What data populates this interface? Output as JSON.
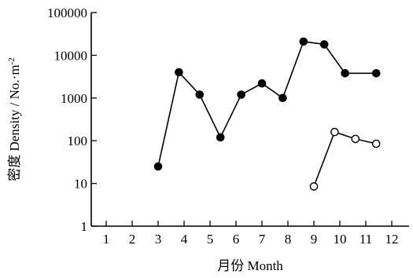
{
  "chart_data": {
    "type": "line",
    "title": "",
    "xlabel": "月份 Month",
    "ylabel": "密度 Density / No.·m",
    "ylabel_superscript": "-2",
    "x_ticks": [
      "1",
      "2",
      "3",
      "4",
      "5",
      "6",
      "7",
      "8",
      "9",
      "10",
      "11",
      "12"
    ],
    "y_ticks": [
      "1",
      "10",
      "100",
      "1000",
      "10000",
      "100000"
    ],
    "y_scale": "log",
    "xlim": [
      0.3,
      12.7
    ],
    "ylim": [
      1,
      100000
    ],
    "grid": false,
    "legend": "none",
    "series": [
      {
        "marker": "filled-circle",
        "color": "#000000",
        "x": [
          3,
          3.8,
          4.6,
          5.4,
          6.2,
          7,
          7.8,
          8.6,
          9.4,
          10.2,
          11.4
        ],
        "y": [
          25,
          4000,
          1200,
          120,
          1200,
          2200,
          1000,
          21000,
          18000,
          3800,
          3800
        ]
      },
      {
        "marker": "open-circle",
        "color": "#000000",
        "x": [
          9,
          9.8,
          10.6,
          11.4
        ],
        "y": [
          8.5,
          160,
          110,
          85
        ]
      }
    ]
  }
}
